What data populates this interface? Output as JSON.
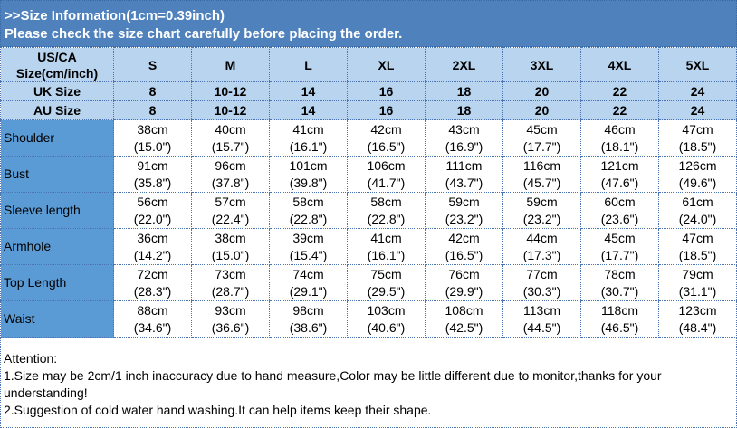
{
  "title": {
    "line1": ">>Size Information(1cm=0.39inch)",
    "line2": "Please check the size chart carefully before placing the order."
  },
  "header": {
    "us_label_1": "US/CA",
    "us_label_2": "Size(cm/inch)",
    "sizes": [
      "S",
      "M",
      "L",
      "XL",
      "2XL",
      "3XL",
      "4XL",
      "5XL"
    ],
    "uk_label": "UK Size",
    "uk": [
      "8",
      "10-12",
      "14",
      "16",
      "18",
      "20",
      "22",
      "24"
    ],
    "au_label": "AU Size",
    "au": [
      "8",
      "10-12",
      "14",
      "16",
      "18",
      "20",
      "22",
      "24"
    ]
  },
  "rows": [
    {
      "label": "Shoulder",
      "cm": [
        "38cm",
        "40cm",
        "41cm",
        "42cm",
        "43cm",
        "45cm",
        "46cm",
        "47cm"
      ],
      "in": [
        "(15.0\")",
        "(15.7\")",
        "(16.1\")",
        "(16.5\")",
        "(16.9\")",
        "(17.7\")",
        "(18.1\")",
        "(18.5\")"
      ]
    },
    {
      "label": "Bust",
      "cm": [
        "91cm",
        "96cm",
        "101cm",
        "106cm",
        "111cm",
        "116cm",
        "121cm",
        "126cm"
      ],
      "in": [
        "(35.8\")",
        "(37.8\")",
        "(39.8\")",
        "(41.7\")",
        "(43.7\")",
        "(45.7\")",
        "(47.6\")",
        "(49.6\")"
      ]
    },
    {
      "label": "Sleeve length",
      "cm": [
        "56cm",
        "57cm",
        "58cm",
        "58cm",
        "59cm",
        "59cm",
        "60cm",
        "61cm"
      ],
      "in": [
        "(22.0\")",
        "(22.4\")",
        "(22.8\")",
        "(22.8\")",
        "(23.2\")",
        "(23.2\")",
        "(23.6\")",
        "(24.0\")"
      ]
    },
    {
      "label": "Armhole",
      "cm": [
        "36cm",
        "38cm",
        "39cm",
        "41cm",
        "42cm",
        "44cm",
        "45cm",
        "47cm"
      ],
      "in": [
        "(14.2\")",
        "(15.0\")",
        "(15.4\")",
        "(16.1\")",
        "(16.5\")",
        "(17.3\")",
        "(17.7\")",
        "(18.5\")"
      ]
    },
    {
      "label": "Top Length",
      "cm": [
        "72cm",
        "73cm",
        "74cm",
        "75cm",
        "76cm",
        "77cm",
        "78cm",
        "79cm"
      ],
      "in": [
        "(28.3\")",
        "(28.7\")",
        "(29.1\")",
        "(29.5\")",
        "(29.9\")",
        "(30.3\")",
        "(30.7\")",
        "(31.1\")"
      ]
    },
    {
      "label": "Waist",
      "cm": [
        "88cm",
        "93cm",
        "98cm",
        "103cm",
        "108cm",
        "113cm",
        "118cm",
        "123cm"
      ],
      "in": [
        "(34.6\")",
        "(36.6\")",
        "(38.6\")",
        "(40.6\")",
        "(42.5\")",
        "(44.5\")",
        "(46.5\")",
        "(48.4\")"
      ]
    }
  ],
  "notes": {
    "heading": "Attention:",
    "line1": "1.Size may be 2cm/1 inch inaccuracy due to hand measure,Color may be little different due to monitor,thanks for your understanding!",
    "line2": "2.Suggestion of cold water hand washing.It can help items keep their shape."
  },
  "colors": {
    "title_bg": "#4f81bd",
    "header_bg": "#b8d4ee",
    "label_bg": "#5b9bd5"
  }
}
